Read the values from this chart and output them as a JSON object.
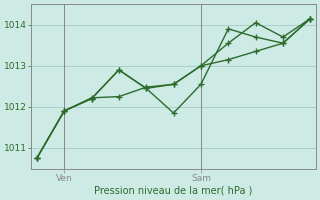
{
  "xlabel": "Pression niveau de la mer( hPa )",
  "ylim": [
    1010.5,
    1014.5
  ],
  "yticks": [
    1011,
    1012,
    1013,
    1014
  ],
  "bg_color": "#ceeae5",
  "grid_color": "#aad0cb",
  "line_color": "#2d6b2d",
  "line1_x": [
    0,
    1,
    2,
    3,
    4,
    5,
    6,
    7,
    8,
    9,
    10
  ],
  "line1_y": [
    1010.75,
    1011.9,
    1012.2,
    1012.9,
    1012.45,
    1011.85,
    1012.55,
    1013.9,
    1013.7,
    1013.55,
    1014.15
  ],
  "line2_x": [
    0,
    1,
    2,
    3,
    4,
    5,
    6,
    7,
    8,
    9,
    10
  ],
  "line2_y": [
    1010.75,
    1011.9,
    1012.2,
    1012.9,
    1012.45,
    1012.55,
    1013.0,
    1013.55,
    1014.05,
    1013.7,
    1014.15
  ],
  "line3_x": [
    0,
    1,
    2,
    3,
    4,
    5,
    6,
    7,
    8,
    9,
    10
  ],
  "line3_y": [
    1010.75,
    1011.9,
    1012.22,
    1012.25,
    1012.48,
    1012.55,
    1013.0,
    1013.15,
    1013.35,
    1013.55,
    1014.15
  ],
  "ven_x": 1,
  "sam_x": 6,
  "xlim": [
    -0.2,
    10.2
  ]
}
